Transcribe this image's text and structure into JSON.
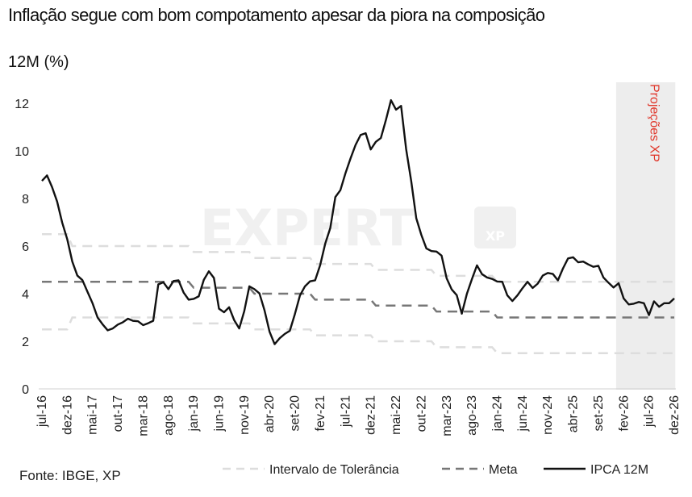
{
  "title": "Inflação segue com bom compotamento apesar da piora na composição",
  "subtitle": "12M (%)",
  "source": "Fonte: IBGE, XP",
  "watermark": {
    "main": "EXPERT",
    "badge": "XP"
  },
  "colors": {
    "ipca": "#111111",
    "meta": "#777777",
    "interval": "#dddddd",
    "projection_shade": "#ededed",
    "projection_label": "#e0382c"
  },
  "chart_data": {
    "type": "line",
    "title": "Inflação segue com bom compotamento apesar da piora na composição",
    "ylabel": "12M (%)",
    "xlabel": "",
    "ylim": [
      0,
      12
    ],
    "yticks": [
      0,
      2,
      4,
      6,
      8,
      10,
      12
    ],
    "x_start": "jul-16",
    "x_end": "dez-26",
    "xtick_labels": [
      "jul-16",
      "dez-16",
      "mai-17",
      "out-17",
      "mar-18",
      "ago-18",
      "jan-19",
      "jun-19",
      "nov-19",
      "abr-20",
      "set-20",
      "fev-21",
      "jul-21",
      "dez-21",
      "mai-22",
      "out-22",
      "mar-23",
      "ago-23",
      "jan-24",
      "jun-24",
      "nov-24",
      "abr-25",
      "set-25",
      "fev-26",
      "jul-26",
      "dez-26"
    ],
    "projection": {
      "label": "Projeções XP",
      "start": "jan-26",
      "end": "dez-26"
    },
    "legend": {
      "placement": "bottom",
      "entries": [
        "Intervalo de Tolerância",
        "Meta",
        "IPCA 12M"
      ]
    },
    "series": [
      {
        "name": "IPCA 12M",
        "style": "solid",
        "values": [
          8.74,
          8.97,
          8.48,
          7.87,
          6.99,
          6.29,
          5.35,
          4.76,
          4.57,
          4.08,
          3.6,
          3.0,
          2.71,
          2.46,
          2.54,
          2.7,
          2.8,
          2.95,
          2.86,
          2.84,
          2.68,
          2.76,
          2.86,
          4.39,
          4.48,
          4.19,
          4.53,
          4.56,
          4.05,
          3.75,
          3.78,
          3.89,
          4.58,
          4.94,
          4.66,
          3.37,
          3.22,
          3.43,
          2.89,
          2.54,
          3.27,
          4.31,
          4.19,
          4.01,
          3.3,
          2.4,
          1.88,
          2.13,
          2.31,
          2.44,
          3.14,
          3.92,
          4.31,
          4.52,
          4.56,
          5.2,
          6.1,
          6.76,
          8.06,
          8.35,
          9.06,
          9.68,
          10.25,
          10.67,
          10.74,
          10.06,
          10.38,
          10.54,
          11.3,
          12.13,
          11.73,
          11.89,
          10.07,
          8.73,
          7.17,
          6.47,
          5.9,
          5.79,
          5.77,
          5.6,
          4.65,
          4.18,
          3.94,
          3.16,
          3.99,
          4.61,
          5.19,
          4.82,
          4.68,
          4.62,
          4.51,
          4.5,
          3.93,
          3.69,
          3.93,
          4.23,
          4.5,
          4.24,
          4.42,
          4.76,
          4.87,
          4.83,
          4.56,
          5.06,
          5.48,
          5.53,
          5.32,
          5.35,
          5.23,
          5.13,
          5.17,
          4.68,
          4.46,
          4.26,
          4.44,
          3.8,
          3.55,
          3.58,
          3.65,
          3.6,
          3.1,
          3.68,
          3.45,
          3.6,
          3.6,
          3.8
        ]
      },
      {
        "name": "Meta",
        "style": "dashed",
        "steps": [
          {
            "from": "jul-16",
            "to": "dez-18",
            "value": 4.5
          },
          {
            "from": "jan-19",
            "to": "dez-19",
            "value": 4.25
          },
          {
            "from": "jan-20",
            "to": "dez-20",
            "value": 4.0
          },
          {
            "from": "jan-21",
            "to": "dez-21",
            "value": 3.75
          },
          {
            "from": "jan-22",
            "to": "dez-22",
            "value": 3.5
          },
          {
            "from": "jan-23",
            "to": "dez-23",
            "value": 3.25
          },
          {
            "from": "jan-24",
            "to": "dez-26",
            "value": 3.0
          }
        ]
      },
      {
        "name": "Intervalo de Tolerância",
        "style": "dashed",
        "upper_steps": [
          {
            "from": "jul-16",
            "to": "dez-16",
            "value": 6.5
          },
          {
            "from": "jan-17",
            "to": "dez-18",
            "value": 6.0
          },
          {
            "from": "jan-19",
            "to": "dez-19",
            "value": 5.75
          },
          {
            "from": "jan-20",
            "to": "dez-20",
            "value": 5.5
          },
          {
            "from": "jan-21",
            "to": "dez-21",
            "value": 5.25
          },
          {
            "from": "jan-22",
            "to": "dez-22",
            "value": 5.0
          },
          {
            "from": "jan-23",
            "to": "dez-23",
            "value": 4.75
          },
          {
            "from": "jan-24",
            "to": "dez-26",
            "value": 4.5
          }
        ],
        "lower_steps": [
          {
            "from": "jul-16",
            "to": "dez-16",
            "value": 2.5
          },
          {
            "from": "jan-17",
            "to": "dez-18",
            "value": 3.0
          },
          {
            "from": "jan-19",
            "to": "dez-19",
            "value": 2.75
          },
          {
            "from": "jan-20",
            "to": "dez-20",
            "value": 2.5
          },
          {
            "from": "jan-21",
            "to": "dez-21",
            "value": 2.25
          },
          {
            "from": "jan-22",
            "to": "dez-22",
            "value": 2.0
          },
          {
            "from": "jan-23",
            "to": "dez-23",
            "value": 1.75
          },
          {
            "from": "jan-24",
            "to": "dez-26",
            "value": 1.5
          }
        ]
      }
    ]
  }
}
